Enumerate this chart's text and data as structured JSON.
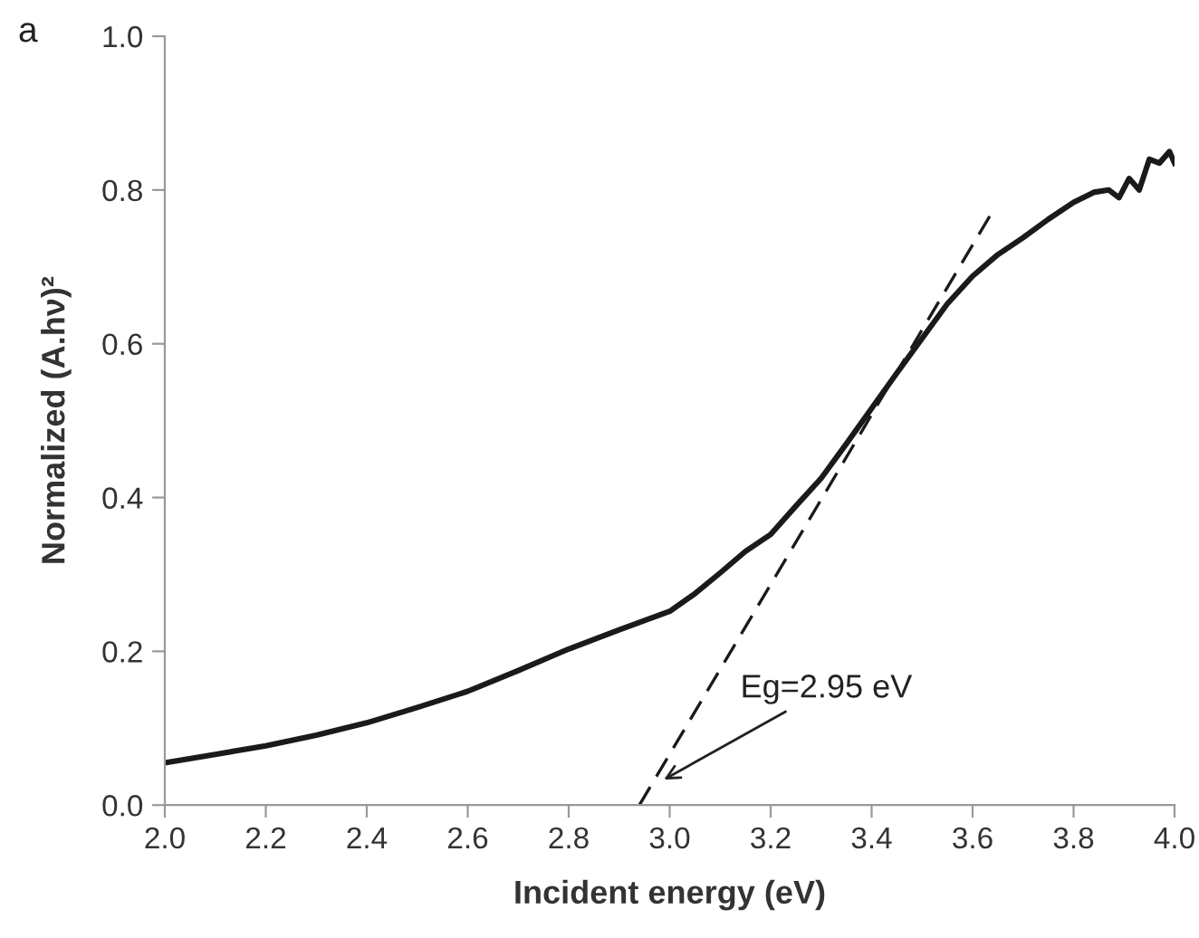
{
  "chart_data": {
    "type": "line",
    "xlabel": "Incident energy (eV)",
    "ylabel": "Normalized (A.hν)²",
    "xlim": [
      2.0,
      4.0
    ],
    "ylim": [
      0.0,
      1.0
    ],
    "xticks": [
      {
        "value": 2.0,
        "label": "2.0"
      },
      {
        "value": 2.2,
        "label": "2.2"
      },
      {
        "value": 2.4,
        "label": "2.4"
      },
      {
        "value": 2.6,
        "label": "2.6"
      },
      {
        "value": 2.8,
        "label": "2.8"
      },
      {
        "value": 3.0,
        "label": "3.0"
      },
      {
        "value": 3.2,
        "label": "3.2"
      },
      {
        "value": 3.4,
        "label": "3.4"
      },
      {
        "value": 3.6,
        "label": "3.6"
      },
      {
        "value": 3.8,
        "label": "3.8"
      },
      {
        "value": 4.0,
        "label": "4.0"
      }
    ],
    "yticks": [
      {
        "value": 0.0,
        "label": "0.0"
      },
      {
        "value": 0.2,
        "label": "0.2"
      },
      {
        "value": 0.4,
        "label": "0.4"
      },
      {
        "value": 0.6,
        "label": "0.6"
      },
      {
        "value": 0.8,
        "label": "0.8"
      },
      {
        "value": 1.0,
        "label": "1.0"
      }
    ],
    "series": [
      {
        "color": "#1a1a1a",
        "line_style": "solid",
        "x": [
          2.0,
          2.1,
          2.2,
          2.3,
          2.4,
          2.5,
          2.6,
          2.7,
          2.8,
          2.9,
          3.0,
          3.05,
          3.1,
          3.15,
          3.2,
          3.25,
          3.3,
          3.35,
          3.4,
          3.45,
          3.5,
          3.55,
          3.6,
          3.65,
          3.7,
          3.75,
          3.8,
          3.84,
          3.87,
          3.89,
          3.91,
          3.93,
          3.95,
          3.97,
          3.99,
          4.0
        ],
        "values": [
          0.055,
          0.066,
          0.077,
          0.091,
          0.107,
          0.127,
          0.148,
          0.175,
          0.203,
          0.228,
          0.252,
          0.275,
          0.302,
          0.33,
          0.352,
          0.389,
          0.425,
          0.47,
          0.516,
          0.562,
          0.607,
          0.652,
          0.688,
          0.716,
          0.738,
          0.762,
          0.784,
          0.797,
          0.8,
          0.79,
          0.815,
          0.8,
          0.84,
          0.835,
          0.85,
          0.835
        ]
      },
      {
        "color": "#1a1a1a",
        "line_style": "dashed",
        "x": [
          2.94,
          3.634
        ],
        "values": [
          0.0,
          0.766
        ]
      }
    ],
    "annotations": [
      {
        "text": "Eg=2.95 eV",
        "x": 2.98,
        "y": 0.03
      },
      "a"
    ]
  }
}
